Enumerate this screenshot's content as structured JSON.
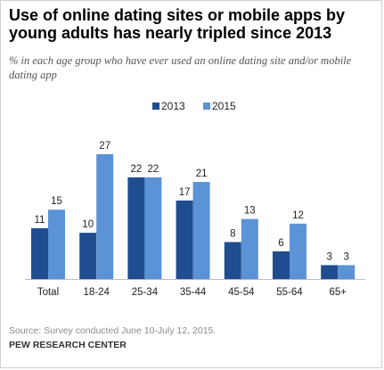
{
  "chart_data": {
    "type": "bar",
    "title": "Use of online dating sites or mobile apps by young adults has nearly tripled since 2013",
    "subtitle": "% in each age group who have ever used an online dating site and/or mobile dating app",
    "categories": [
      "Total",
      "18-24",
      "25-34",
      "35-44",
      "45-54",
      "55-64",
      "65+"
    ],
    "series": [
      {
        "name": "2013",
        "color": "#1f4d8f",
        "values": [
          11,
          10,
          22,
          17,
          8,
          6,
          3
        ]
      },
      {
        "name": "2015",
        "color": "#5b93d6",
        "values": [
          15,
          27,
          22,
          21,
          13,
          12,
          3
        ]
      }
    ],
    "ylim": [
      0,
      27
    ],
    "grid": false,
    "legend_position": "top-center",
    "data_labels": true
  },
  "footer": {
    "source": "Source: Survey conducted June 10-July 12, 2015.",
    "organization": "PEW RESEARCH CENTER"
  }
}
